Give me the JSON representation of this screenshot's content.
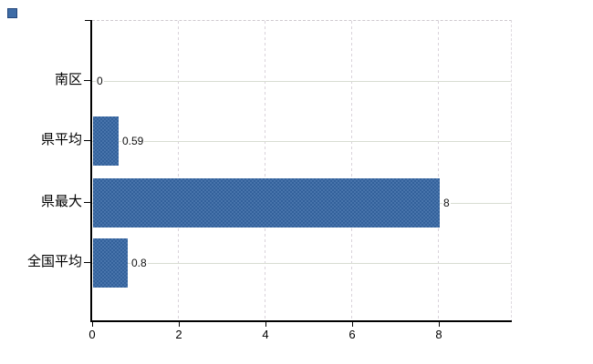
{
  "chart": {
    "background": "#ffffff",
    "bar_color": "#3c69a1",
    "bar_dither_dark": "#33619b",
    "bar_dither_light": "#4874ab",
    "legend_marker_color": "#3e6ca6",
    "axis_color": "#000000",
    "grid_horizontal_color": "#d8ddd2",
    "grid_vertical_color": "#d9d2da",
    "border_dash_color": "#cfc9cf",
    "text_color": "#000000"
  },
  "chart_data": {
    "type": "bar",
    "orientation": "horizontal",
    "title": "",
    "xlabel": "",
    "ylabel": "",
    "categories": [
      "南区",
      "県平均",
      "県最大",
      "全国平均"
    ],
    "values": [
      0,
      0.59,
      8,
      0.8
    ],
    "value_labels": [
      "0",
      "0.59",
      "8",
      "0.8"
    ],
    "x_ticks": [
      0,
      2,
      4,
      6,
      8
    ],
    "x_tick_labels": [
      "0",
      "2",
      "4",
      "6",
      "8"
    ],
    "xlim": [
      0,
      9.67
    ],
    "grid": "on",
    "legend_position": "top-left-marker-only"
  }
}
